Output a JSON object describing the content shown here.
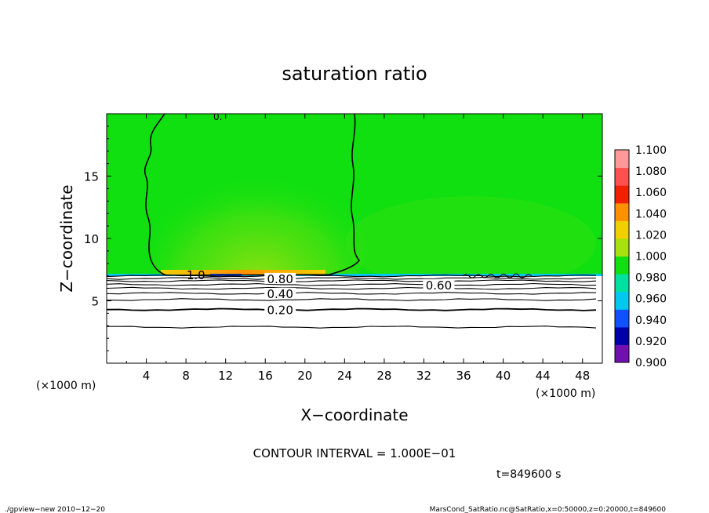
{
  "chart_data": {
    "type": "heatmap",
    "title": "saturation ratio",
    "xlabel": "X−coordinate",
    "ylabel": "Z−coordinate",
    "x_unit_left": "(×1000 m)",
    "x_unit_right": "(×1000 m)",
    "xlim": [
      0,
      50
    ],
    "ylim": [
      0,
      20
    ],
    "xticks": [
      4,
      8,
      12,
      16,
      20,
      24,
      28,
      32,
      36,
      40,
      44,
      48
    ],
    "yticks": [
      5,
      10,
      15
    ],
    "colorbar": {
      "levels": [
        0.9,
        0.92,
        0.94,
        0.96,
        0.98,
        1.0,
        1.02,
        1.04,
        1.06,
        1.08,
        1.1
      ],
      "labels": [
        "0.900",
        "0.920",
        "0.940",
        "0.960",
        "0.980",
        "1.000",
        "1.020",
        "1.040",
        "1.060",
        "1.080",
        "1.100"
      ],
      "colors": [
        "#7010b0",
        "#0000a8",
        "#1050ff",
        "#00c8f0",
        "#00e0a0",
        "#10e010",
        "#a8e010",
        "#f0d000",
        "#ff9000",
        "#f02000",
        "#ff5050",
        "#ff9898"
      ]
    },
    "contour_labels": [
      {
        "text": "1.0",
        "x": 9,
        "z": 7.1
      },
      {
        "text": "0.80",
        "x": 17.5,
        "z": 6.8
      },
      {
        "text": "0.60",
        "x": 33.5,
        "z": 6.3
      },
      {
        "text": "0.40",
        "x": 17.5,
        "z": 5.6
      },
      {
        "text": "0.20",
        "x": 17.5,
        "z": 4.3
      }
    ],
    "contour_levels_z": [
      2.9,
      4.3,
      5.1,
      5.6,
      6.0,
      6.3,
      6.6,
      6.8,
      7.0
    ],
    "supersaturated_region_x": [
      5,
      25
    ],
    "cloud_base_z": 7.1
  },
  "contour_interval": "CONTOUR INTERVAL = 1.000E−01",
  "time_label": "t=849600 s",
  "footer_left": "./gpview−new  2010−12−20",
  "footer_right": "MarsCond_SatRatio.nc@SatRatio,x=0:50000,z=0:20000,t=849600"
}
